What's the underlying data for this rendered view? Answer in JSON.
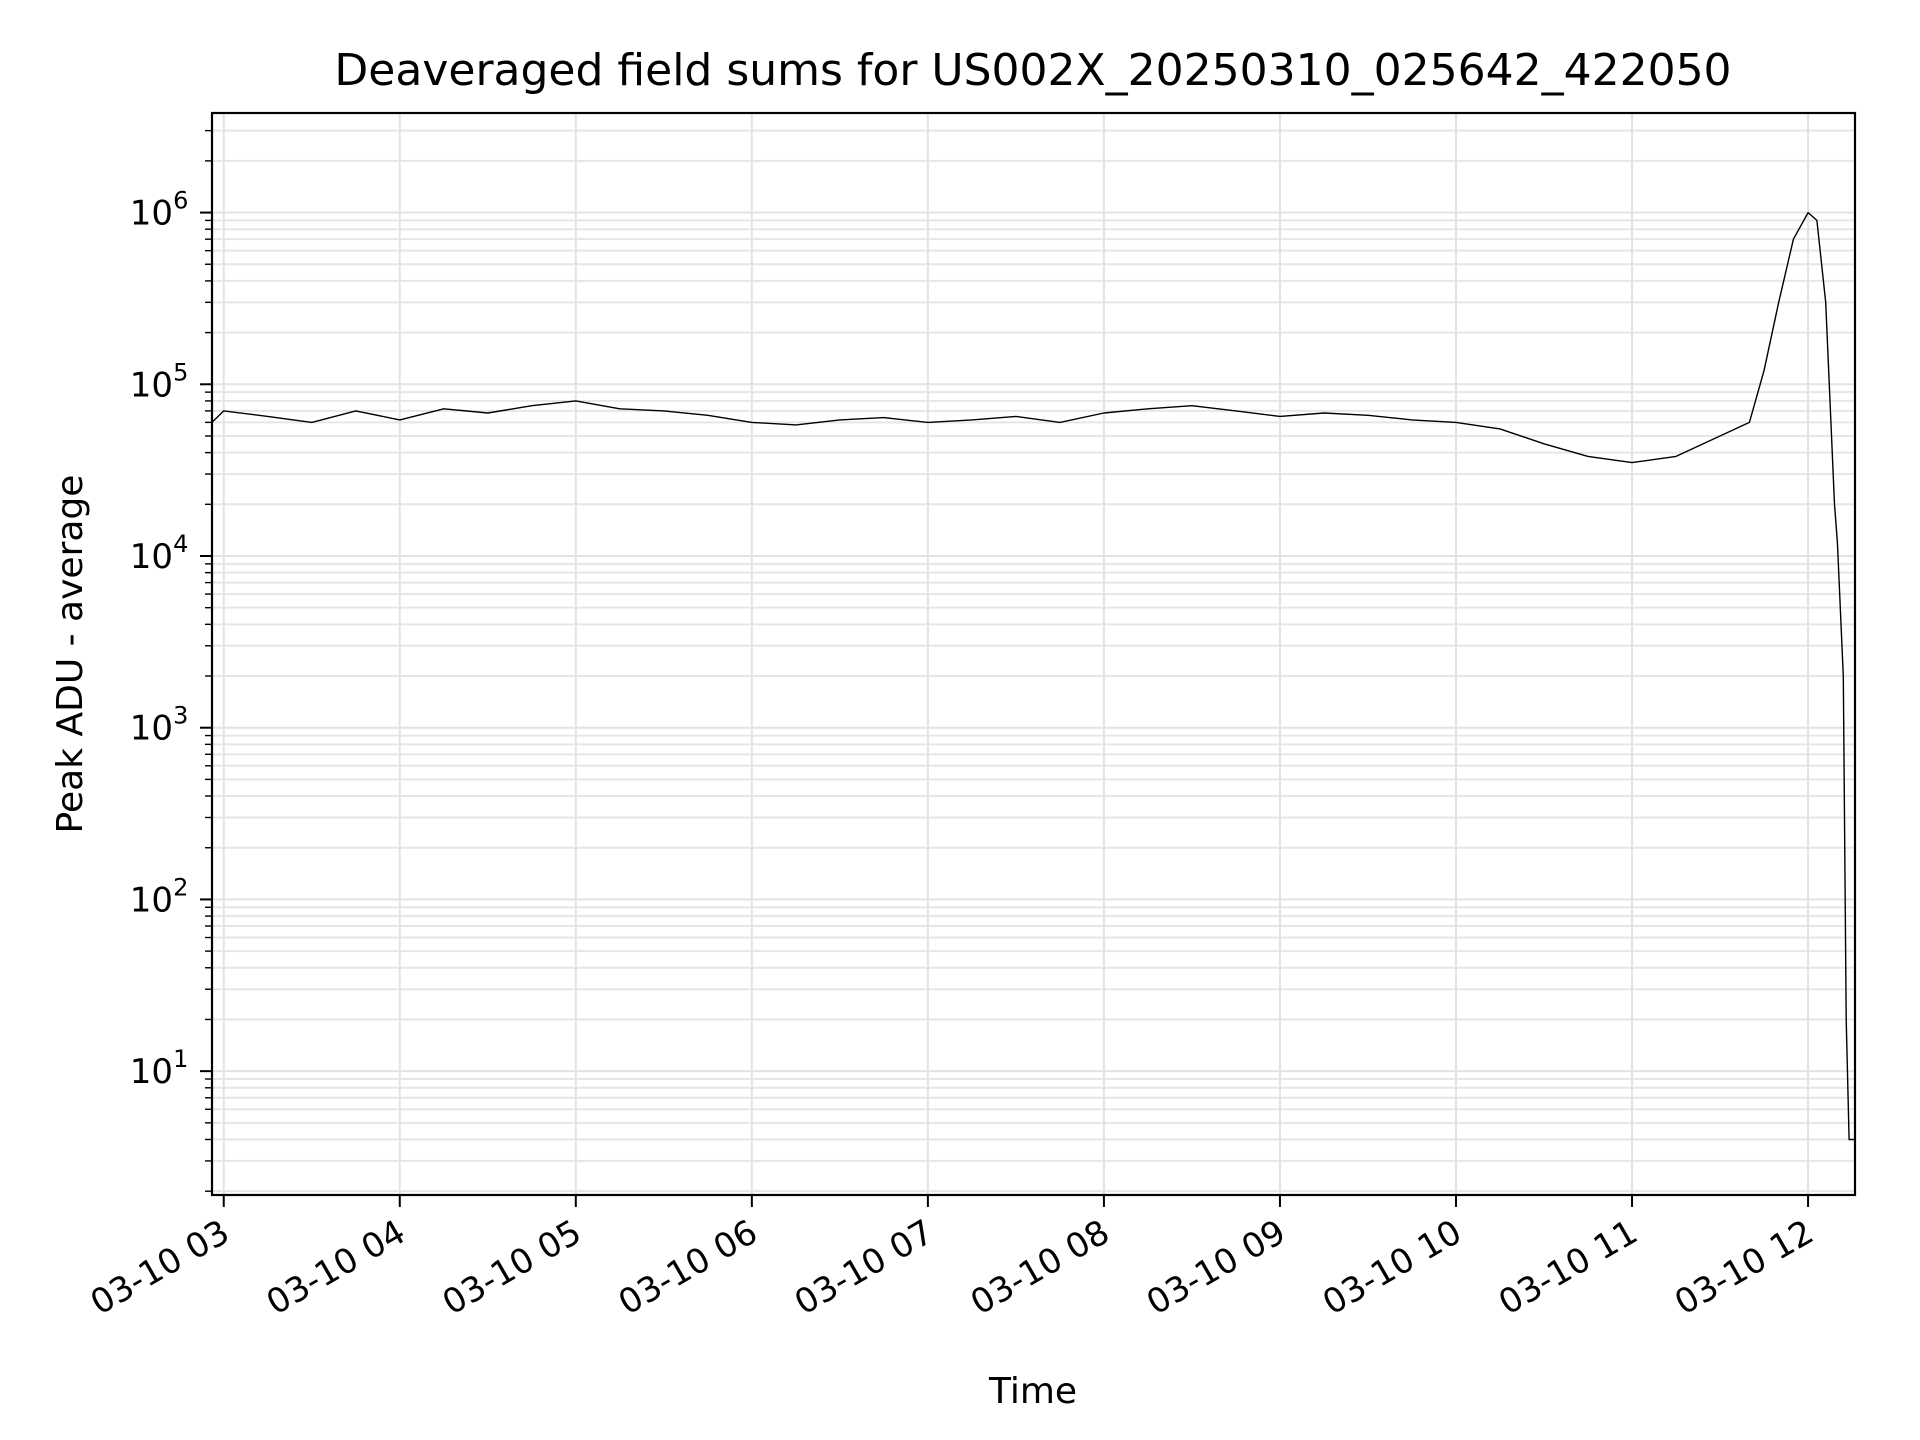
{
  "chart_data": {
    "type": "line",
    "title": "Deaveraged field sums for US002X_20250310_025642_422050",
    "xlabel": "Time",
    "ylabel": "Peak ADU - average",
    "yscale": "log",
    "ylim": [
      1.9,
      3800000
    ],
    "xlim": [
      "2025-03-10 02:56",
      "2025-03-10 12:16"
    ],
    "grid": true,
    "x_ticks": [
      {
        "value": "2025-03-10 03:00",
        "label": "03-10 03"
      },
      {
        "value": "2025-03-10 04:00",
        "label": "03-10 04"
      },
      {
        "value": "2025-03-10 05:00",
        "label": "03-10 05"
      },
      {
        "value": "2025-03-10 06:00",
        "label": "03-10 06"
      },
      {
        "value": "2025-03-10 07:00",
        "label": "03-10 07"
      },
      {
        "value": "2025-03-10 08:00",
        "label": "03-10 08"
      },
      {
        "value": "2025-03-10 09:00",
        "label": "03-10 09"
      },
      {
        "value": "2025-03-10 10:00",
        "label": "03-10 10"
      },
      {
        "value": "2025-03-10 11:00",
        "label": "03-10 11"
      },
      {
        "value": "2025-03-10 12:00",
        "label": "03-10 12"
      }
    ],
    "y_ticks": [
      {
        "value": 10,
        "base": "10",
        "exp": "1"
      },
      {
        "value": 100,
        "base": "10",
        "exp": "2"
      },
      {
        "value": 1000,
        "base": "10",
        "exp": "3"
      },
      {
        "value": 10000,
        "base": "10",
        "exp": "4"
      },
      {
        "value": 100000,
        "base": "10",
        "exp": "5"
      },
      {
        "value": 1000000,
        "base": "10",
        "exp": "6"
      }
    ],
    "series": [
      {
        "color": "#000000",
        "x": [
          "2025-03-10 02:56",
          "2025-03-10 03:00",
          "2025-03-10 03:15",
          "2025-03-10 03:30",
          "2025-03-10 03:45",
          "2025-03-10 04:00",
          "2025-03-10 04:15",
          "2025-03-10 04:30",
          "2025-03-10 04:45",
          "2025-03-10 05:00",
          "2025-03-10 05:15",
          "2025-03-10 05:30",
          "2025-03-10 05:45",
          "2025-03-10 06:00",
          "2025-03-10 06:15",
          "2025-03-10 06:30",
          "2025-03-10 06:45",
          "2025-03-10 07:00",
          "2025-03-10 07:15",
          "2025-03-10 07:30",
          "2025-03-10 07:45",
          "2025-03-10 08:00",
          "2025-03-10 08:15",
          "2025-03-10 08:30",
          "2025-03-10 08:45",
          "2025-03-10 09:00",
          "2025-03-10 09:15",
          "2025-03-10 09:30",
          "2025-03-10 09:45",
          "2025-03-10 10:00",
          "2025-03-10 10:15",
          "2025-03-10 10:30",
          "2025-03-10 10:45",
          "2025-03-10 11:00",
          "2025-03-10 11:15",
          "2025-03-10 11:30",
          "2025-03-10 11:40",
          "2025-03-10 11:45",
          "2025-03-10 11:50",
          "2025-03-10 11:55",
          "2025-03-10 12:00",
          "2025-03-10 12:03",
          "2025-03-10 12:06",
          "2025-03-10 12:09",
          "2025-03-10 12:10",
          "2025-03-10 12:12",
          "2025-03-10 12:13",
          "2025-03-10 12:14",
          "2025-03-10 12:16"
        ],
        "y": [
          60000,
          70000,
          65000,
          60000,
          70000,
          62000,
          72000,
          68000,
          75000,
          80000,
          72000,
          70000,
          66000,
          60000,
          58000,
          62000,
          64000,
          60000,
          62000,
          65000,
          60000,
          68000,
          72000,
          75000,
          70000,
          65000,
          68000,
          66000,
          62000,
          60000,
          55000,
          45000,
          38000,
          35000,
          38000,
          50000,
          60000,
          120000,
          300000,
          700000,
          1000000,
          900000,
          300000,
          20000,
          12000,
          2000,
          20,
          4,
          4
        ]
      }
    ]
  }
}
